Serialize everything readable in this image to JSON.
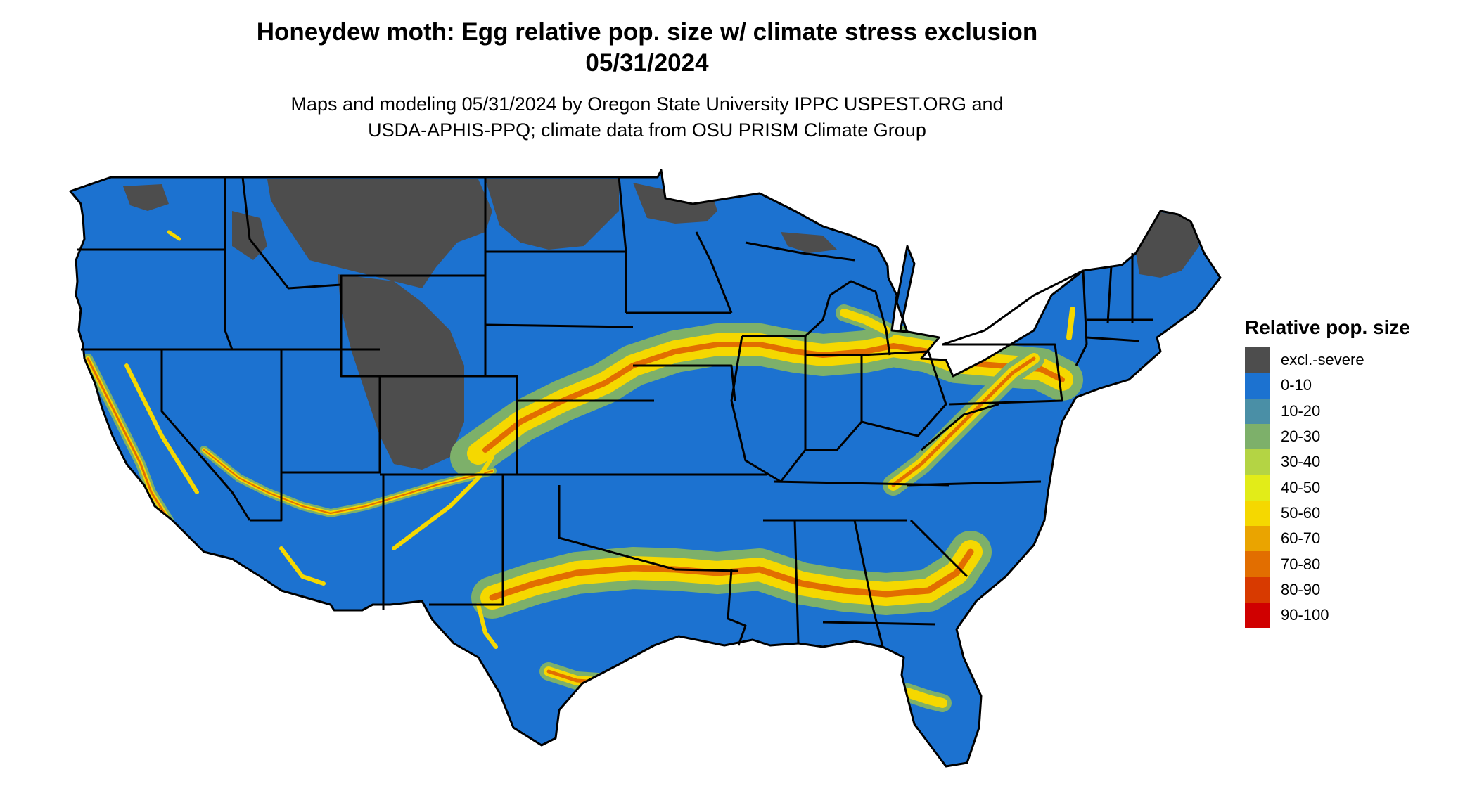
{
  "title": {
    "line1": "Honeydew moth: Egg relative pop. size w/ climate stress exclusion",
    "line2": "05/31/2024"
  },
  "subtitle": {
    "line1": "Maps and modeling 05/31/2024 by Oregon State University IPPC USPEST.ORG and",
    "line2": "USDA-APHIS-PPQ; climate data from OSU PRISM Climate Group"
  },
  "legend": {
    "title": "Relative pop. size",
    "items": [
      {
        "label": "excl.-severe",
        "color": "#4d4d4d"
      },
      {
        "label": "0-10",
        "color": "#1c72d0"
      },
      {
        "label": "10-20",
        "color": "#4a8fa6"
      },
      {
        "label": "20-30",
        "color": "#7db06a"
      },
      {
        "label": "30-40",
        "color": "#b4d444"
      },
      {
        "label": "40-50",
        "color": "#e2ec18"
      },
      {
        "label": "50-60",
        "color": "#f5d800"
      },
      {
        "label": "60-70",
        "color": "#eaa400"
      },
      {
        "label": "70-80",
        "color": "#e26e00"
      },
      {
        "label": "80-90",
        "color": "#d83a00"
      },
      {
        "label": "90-100",
        "color": "#d00000"
      }
    ]
  },
  "map": {
    "colors": {
      "base": "#1c72d0",
      "excluded": "#4d4d4d",
      "band_outer": "#7db06a",
      "band_mid": "#f5d800",
      "band_core": "#e26e00",
      "border": "#000000"
    }
  }
}
